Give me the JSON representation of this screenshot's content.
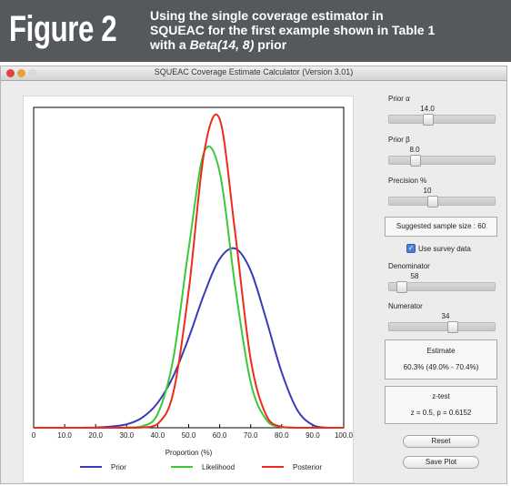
{
  "banner": {
    "figure_label": "Figure 2",
    "caption_line1": "Using the single coverage estimator in",
    "caption_line2": "SQUEAC for the first example shown in Table 1",
    "caption_line3_pre": "with a ",
    "caption_line3_italic": "Beta(14, 8)",
    "caption_line3_post": " prior"
  },
  "window": {
    "title": "SQUEAC Coverage Estimate Calculator (Version 3.01)",
    "traffic_colors": [
      "#e0453b",
      "#e6a23a",
      "#d9d9d9"
    ]
  },
  "controls": {
    "prior_alpha": {
      "label": "Prior α",
      "value": "14.0",
      "fraction": 0.36
    },
    "prior_beta": {
      "label": "Prior β",
      "value": "8.0",
      "fraction": 0.22
    },
    "precision": {
      "label": "Precision %",
      "value": "10",
      "fraction": 0.4
    },
    "suggested_sample_size": "Suggested sample size : 60",
    "use_survey_data": {
      "label": "Use survey data",
      "checked": true
    },
    "denominator": {
      "label": "Denominator",
      "value": "58",
      "fraction": 0.08
    },
    "numerator": {
      "label": "Numerator",
      "value": "34",
      "fraction": 0.62
    },
    "estimate": {
      "title": "Estimate",
      "value": "60.3% (49.0% - 70.4%)"
    },
    "ztest": {
      "title": "z-test",
      "value": "z = 0.5, p = 0.6152"
    },
    "reset_label": "Reset",
    "save_plot_label": "Save Plot"
  },
  "chart_data": {
    "type": "line",
    "xlabel": "Proportion (%)",
    "ylabel": "",
    "xlim": [
      0,
      100
    ],
    "xticks": [
      "0",
      "10.0",
      "20.0",
      "30.0",
      "40.0",
      "50.0",
      "60.0",
      "70.0",
      "80.0",
      "90.0",
      "100.0"
    ],
    "x": [
      0,
      5,
      10,
      15,
      20,
      25,
      30,
      35,
      40,
      45,
      50,
      55,
      60,
      65,
      70,
      75,
      80,
      85,
      90,
      95,
      100
    ],
    "series": [
      {
        "name": "Prior",
        "color": "#3a3ab8",
        "values": [
          0,
          0,
          0,
          0,
          0.001,
          0.004,
          0.011,
          0.032,
          0.079,
          0.163,
          0.285,
          0.425,
          0.536,
          0.569,
          0.499,
          0.344,
          0.176,
          0.057,
          0.009,
          0.0,
          0
        ]
      },
      {
        "name": "Likelihood",
        "color": "#3cc83c",
        "values": [
          0,
          0,
          0,
          0,
          0,
          0,
          0.001,
          0.005,
          0.044,
          0.218,
          0.569,
          0.876,
          0.812,
          0.448,
          0.144,
          0.026,
          0.002,
          0,
          0,
          0,
          0
        ]
      },
      {
        "name": "Posterior",
        "color": "#ee2b1a",
        "values": [
          0,
          0,
          0,
          0,
          0,
          0,
          0,
          0.001,
          0.012,
          0.11,
          0.434,
          0.876,
          0.98,
          0.618,
          0.217,
          0.04,
          0.003,
          0,
          0,
          0,
          0
        ]
      }
    ]
  }
}
